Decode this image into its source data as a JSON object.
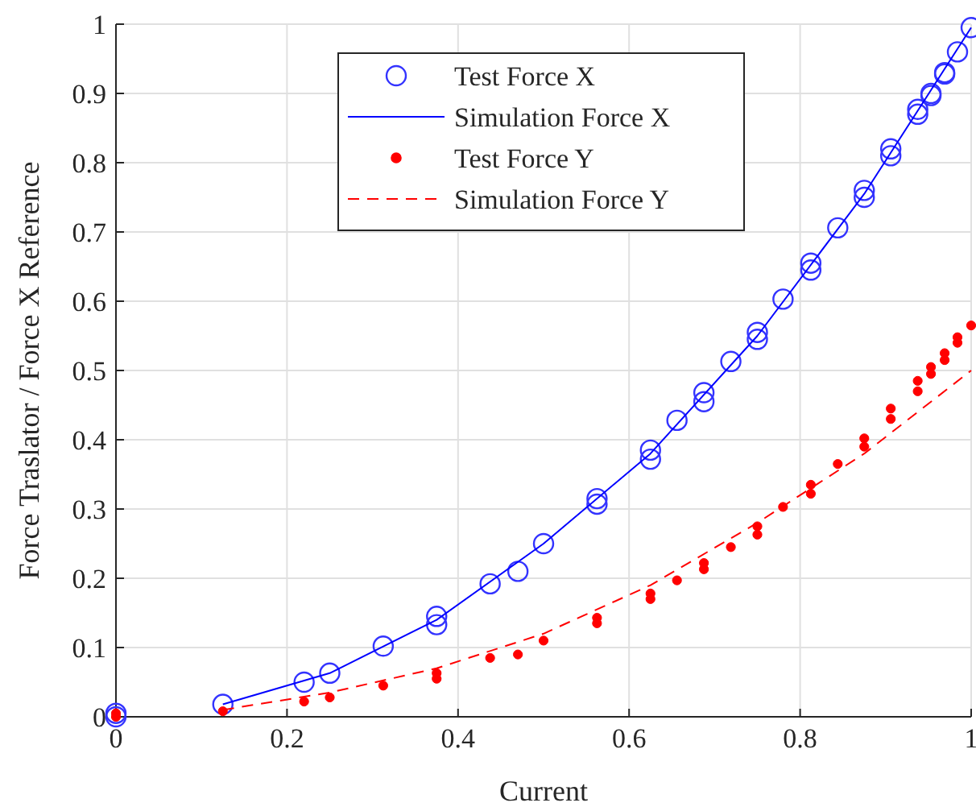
{
  "chart_data": {
    "type": "scatter",
    "xlabel": "Current",
    "ylabel": "Force Traslator / Force X Reference",
    "xlim": [
      0,
      1
    ],
    "ylim": [
      0,
      1
    ],
    "xticks": [
      0,
      0.2,
      0.4,
      0.6,
      0.8,
      1
    ],
    "yticks": [
      0,
      0.1,
      0.2,
      0.3,
      0.4,
      0.5,
      0.6,
      0.7,
      0.8,
      0.9,
      1
    ],
    "grid": true,
    "legend": "top",
    "series": [
      {
        "name": "Test Force X",
        "marker": "circle",
        "color": "#3333ff",
        "x": [
          0,
          0,
          0.125,
          0.22,
          0.25,
          0.3125,
          0.375,
          0.375,
          0.4375,
          0.47,
          0.5,
          0.5625,
          0.5625,
          0.625,
          0.625,
          0.656,
          0.6875,
          0.6875,
          0.719,
          0.75,
          0.75,
          0.78,
          0.8125,
          0.8125,
          0.844,
          0.875,
          0.875,
          0.906,
          0.906,
          0.9375,
          0.9375,
          0.953,
          0.953,
          0.969,
          0.969,
          0.984,
          1
        ],
        "values": [
          0,
          0.005,
          0.018,
          0.05,
          0.063,
          0.102,
          0.145,
          0.133,
          0.192,
          0.21,
          0.25,
          0.315,
          0.307,
          0.385,
          0.372,
          0.428,
          0.468,
          0.455,
          0.513,
          0.555,
          0.545,
          0.603,
          0.655,
          0.645,
          0.706,
          0.76,
          0.75,
          0.82,
          0.81,
          0.877,
          0.87,
          0.897,
          0.9,
          0.93,
          0.928,
          0.96,
          0.995
        ]
      },
      {
        "name": "Simulation Force X",
        "type": "line",
        "line_style": "solid",
        "color": "#0000ff",
        "x": [
          0.125,
          0.25,
          0.375,
          0.5,
          0.625,
          0.75,
          0.875,
          1
        ],
        "values": [
          0.018,
          0.063,
          0.14,
          0.25,
          0.38,
          0.55,
          0.755,
          0.995
        ]
      },
      {
        "name": "Test Force Y",
        "marker": "circle",
        "color": "#ff0000",
        "x": [
          0,
          0,
          0.125,
          0.22,
          0.25,
          0.3125,
          0.375,
          0.375,
          0.4375,
          0.47,
          0.5,
          0.5625,
          0.5625,
          0.625,
          0.625,
          0.656,
          0.6875,
          0.6875,
          0.719,
          0.75,
          0.75,
          0.78,
          0.8125,
          0.8125,
          0.844,
          0.875,
          0.875,
          0.906,
          0.906,
          0.9375,
          0.9375,
          0.953,
          0.953,
          0.969,
          0.969,
          0.984,
          0.984,
          1
        ],
        "values": [
          0,
          0.005,
          0.008,
          0.022,
          0.028,
          0.045,
          0.055,
          0.063,
          0.085,
          0.09,
          0.11,
          0.135,
          0.143,
          0.17,
          0.178,
          0.197,
          0.213,
          0.222,
          0.245,
          0.263,
          0.275,
          0.303,
          0.322,
          0.335,
          0.365,
          0.39,
          0.402,
          0.43,
          0.445,
          0.47,
          0.485,
          0.495,
          0.505,
          0.515,
          0.525,
          0.54,
          0.548,
          0.565
        ]
      },
      {
        "name": "Simulation Force Y",
        "type": "line",
        "line_style": "dashed",
        "color": "#ff0000",
        "x": [
          0.125,
          0.25,
          0.375,
          0.5,
          0.625,
          0.75,
          0.875,
          1
        ],
        "values": [
          0.01,
          0.035,
          0.07,
          0.12,
          0.19,
          0.28,
          0.38,
          0.5
        ]
      }
    ]
  }
}
